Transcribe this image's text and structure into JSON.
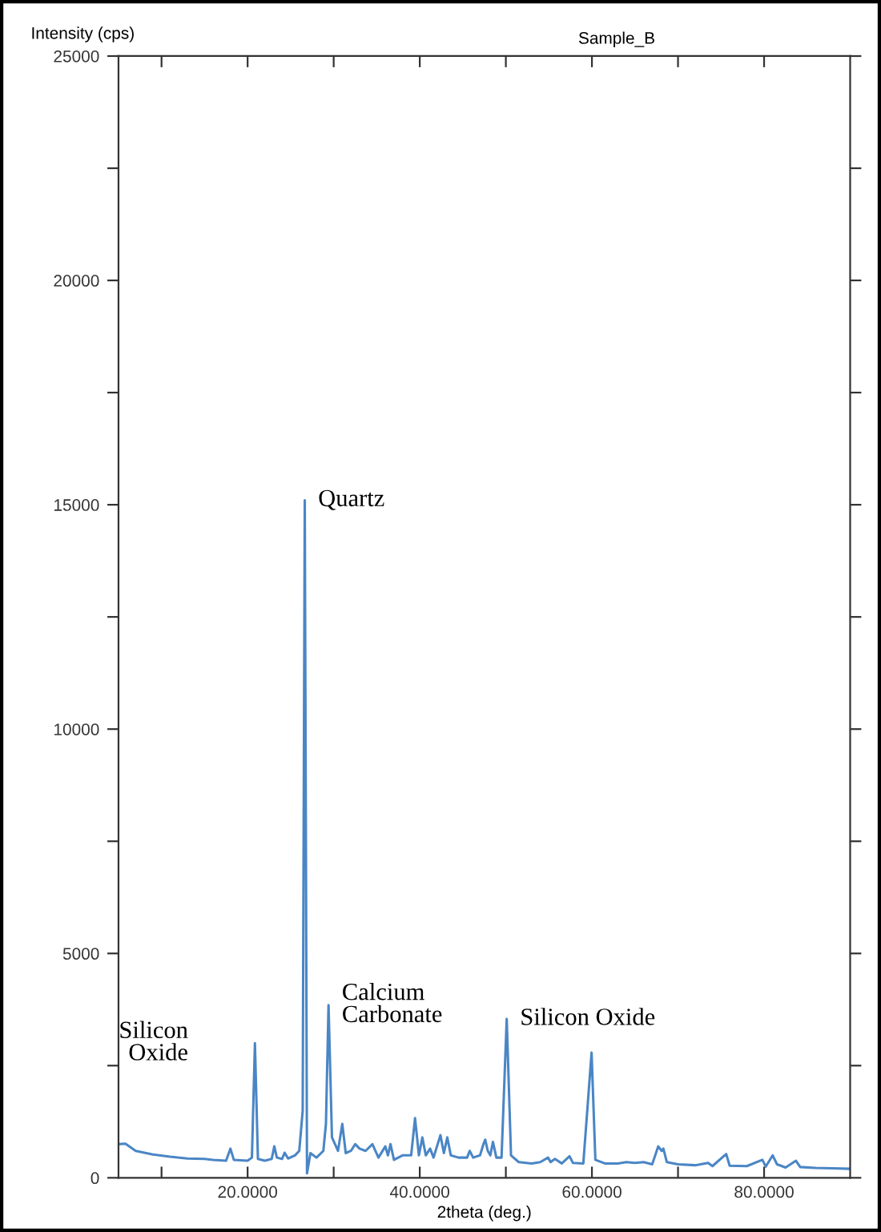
{
  "chart_data": {
    "type": "line",
    "title": "Sample_B",
    "xlabel": "2theta (deg.)",
    "ylabel": "Intensity (cps)",
    "x": [
      5,
      5.8,
      7,
      9,
      11,
      13,
      15,
      16,
      17.5,
      18,
      18.4,
      20,
      20.5,
      20.85,
      21.2,
      22,
      22.8,
      23.1,
      23.4,
      24,
      24.3,
      24.7,
      25.5,
      26,
      26.4,
      26.64,
      26.9,
      27.3,
      28,
      28.8,
      29.1,
      29.4,
      29.8,
      30.5,
      31.0,
      31.4,
      32,
      32.5,
      33,
      33.7,
      34.5,
      35.2,
      36,
      36.3,
      36.6,
      37,
      38,
      39,
      39.45,
      39.9,
      40.3,
      40.7,
      41.2,
      41.6,
      42.4,
      42.8,
      43.2,
      43.6,
      44.5,
      45.5,
      45.8,
      46.2,
      47,
      47.4,
      47.6,
      47.9,
      48.2,
      48.5,
      48.9,
      49.5,
      50.1,
      50.6,
      51.5,
      53,
      54,
      54.9,
      55.2,
      55.7,
      56.5,
      57.4,
      57.8,
      59,
      59.96,
      60.4,
      61.5,
      63,
      64,
      65,
      66,
      67,
      67.7,
      68.1,
      68.3,
      68.7,
      70,
      72,
      73.5,
      74,
      75.6,
      76,
      78,
      79.8,
      80.2,
      81,
      81.5,
      82.5,
      83.7,
      84.2,
      86,
      88,
      90
    ],
    "series": [
      {
        "color": "#4a86c5",
        "values": [
          750,
          760,
          600,
          520,
          470,
          430,
          420,
          400,
          380,
          650,
          400,
          380,
          450,
          3000,
          420,
          380,
          420,
          700,
          450,
          420,
          560,
          430,
          500,
          600,
          1500,
          15100,
          100,
          550,
          450,
          600,
          1200,
          3850,
          900,
          600,
          1200,
          550,
          600,
          750,
          650,
          600,
          750,
          450,
          700,
          500,
          750,
          400,
          500,
          500,
          1330,
          500,
          900,
          500,
          650,
          450,
          950,
          550,
          900,
          500,
          450,
          450,
          600,
          450,
          500,
          750,
          850,
          600,
          500,
          800,
          450,
          450,
          3540,
          500,
          350,
          320,
          350,
          450,
          350,
          420,
          320,
          480,
          330,
          320,
          2790,
          400,
          320,
          320,
          350,
          330,
          350,
          300,
          700,
          600,
          650,
          350,
          300,
          280,
          330,
          260,
          530,
          270,
          260,
          400,
          250,
          500,
          300,
          230,
          380,
          240,
          220,
          210,
          200
        ]
      }
    ],
    "xlim": [
      5,
      90
    ],
    "xticks": [
      {
        "value": 10,
        "label": null
      },
      {
        "value": 20,
        "label": "20.0000"
      },
      {
        "value": 30,
        "label": null
      },
      {
        "value": 40,
        "label": "40.0000"
      },
      {
        "value": 50,
        "label": null
      },
      {
        "value": 60,
        "label": "60.0000"
      },
      {
        "value": 70,
        "label": null
      },
      {
        "value": 80,
        "label": "80.0000"
      }
    ],
    "ylim": [
      0,
      25000
    ],
    "yticks": [
      0,
      {
        "value": 2500,
        "label": null
      },
      5000,
      {
        "value": 7500,
        "label": null
      },
      10000,
      {
        "value": 12500,
        "label": null
      },
      15000,
      {
        "value": 17500,
        "label": null
      },
      20000,
      {
        "value": 22500,
        "label": null
      },
      25000
    ],
    "grid": false,
    "legend": false,
    "marker": "none",
    "line_style": "solid",
    "annotations": [
      {
        "text": "Silicon\nOxide",
        "x": 20.85,
        "y": 3000
      },
      {
        "text": "Quartz",
        "x": 26.64,
        "y": 15100
      },
      {
        "text": "Calcium\nCarbonate",
        "x": 29.4,
        "y": 3850
      },
      {
        "text": "Silicon Oxide",
        "x": 50.1,
        "y": 3540
      }
    ]
  }
}
